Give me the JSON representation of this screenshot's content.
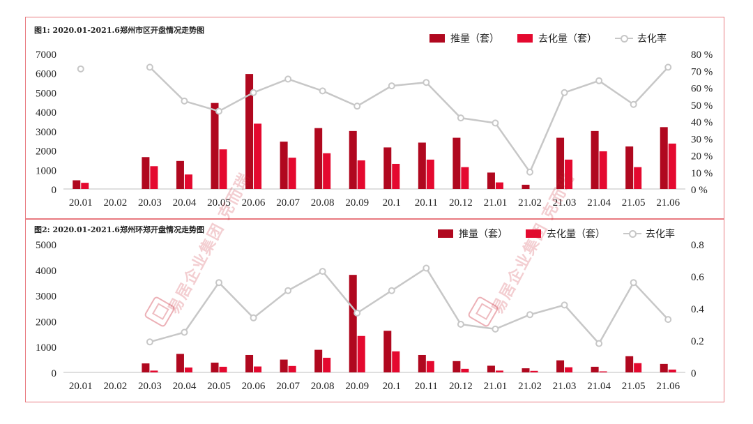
{
  "chart_data": [
    {
      "type": "bar",
      "title": "图1:  2020.01-2021.6郑州市区开盘情况走势图",
      "categories": [
        "20.01",
        "20.02",
        "20.03",
        "20.04",
        "20.05",
        "20.06",
        "20.07",
        "20.08",
        "20.09",
        "20.1",
        "20.11",
        "20.12",
        "21.01",
        "21.02",
        "21.03",
        "21.04",
        "21.05",
        "21.06"
      ],
      "series": [
        {
          "name": "推量（套）",
          "type": "bar",
          "axis": "left",
          "color": "#b0081f",
          "values": [
            450,
            0,
            1650,
            1450,
            4450,
            5950,
            2450,
            3150,
            3000,
            2150,
            2400,
            2650,
            850,
            220,
            2650,
            3000,
            2200,
            3200
          ]
        },
        {
          "name": "去化量（套）",
          "type": "bar",
          "axis": "left",
          "color": "#e4092f",
          "values": [
            320,
            0,
            1180,
            750,
            2050,
            3380,
            1620,
            1850,
            1480,
            1300,
            1520,
            1130,
            340,
            0,
            1520,
            1950,
            1130,
            2350
          ]
        },
        {
          "name": "去化率",
          "type": "line",
          "axis": "right",
          "color": "#c7c7c7",
          "values": [
            71,
            null,
            72,
            52,
            46,
            57,
            65,
            58,
            49,
            61,
            63,
            42,
            39,
            10,
            57,
            64,
            50,
            72
          ]
        }
      ],
      "left_axis": {
        "ylim": [
          0,
          7000
        ],
        "ticks": [
          "0",
          "1000",
          "2000",
          "3000",
          "4000",
          "5000",
          "6000",
          "7000"
        ]
      },
      "right_axis": {
        "ylim": [
          0,
          80
        ],
        "ticks": [
          "0 %",
          "10 %",
          "20 %",
          "30 %",
          "40 %",
          "50 %",
          "60 %",
          "70 %",
          "80 %"
        ]
      },
      "legend": "top-right"
    },
    {
      "type": "bar",
      "title": "图2:  2020.01-2021.6郑州环郑开盘情况走势图",
      "categories": [
        "20.01",
        "20.02",
        "20.03",
        "20.04",
        "20.05",
        "20.06",
        "20.07",
        "20.08",
        "20.09",
        "20.1",
        "20.11",
        "20.12",
        "21.01",
        "21.02",
        "21.03",
        "21.04",
        "21.05",
        "21.06"
      ],
      "series": [
        {
          "name": "推量（套）",
          "type": "bar",
          "axis": "left",
          "color": "#b0081f",
          "values": [
            0,
            0,
            350,
            720,
            380,
            680,
            500,
            880,
            3800,
            1620,
            680,
            440,
            260,
            160,
            470,
            220,
            630,
            330
          ]
        },
        {
          "name": "去化量（套）",
          "type": "bar",
          "axis": "left",
          "color": "#e4092f",
          "values": [
            0,
            0,
            70,
            190,
            220,
            230,
            250,
            570,
            1420,
            820,
            440,
            140,
            70,
            60,
            200,
            40,
            360,
            110
          ]
        },
        {
          "name": "去化率",
          "type": "line",
          "axis": "right",
          "color": "#c7c7c7",
          "values": [
            null,
            null,
            0.19,
            0.25,
            0.56,
            0.34,
            0.51,
            0.63,
            0.37,
            0.51,
            0.65,
            0.3,
            0.27,
            0.36,
            0.42,
            0.18,
            0.56,
            0.33
          ]
        }
      ],
      "left_axis": {
        "ylim": [
          0,
          5000
        ],
        "ticks": [
          "0",
          "1000",
          "2000",
          "3000",
          "4000",
          "5000"
        ]
      },
      "right_axis": {
        "ylim": [
          0,
          0.8
        ],
        "ticks": [
          "0",
          "0.2",
          "0.4",
          "0.6",
          "0.8"
        ]
      },
      "legend": "top-right"
    }
  ],
  "legend_labels": {
    "supply": "推量（套）",
    "sold": "去化量（套）",
    "rate": "去化率"
  },
  "watermark": {
    "text1": "易居企业集团 克而瑞",
    "text2": "易居企业集团 克而瑞"
  }
}
